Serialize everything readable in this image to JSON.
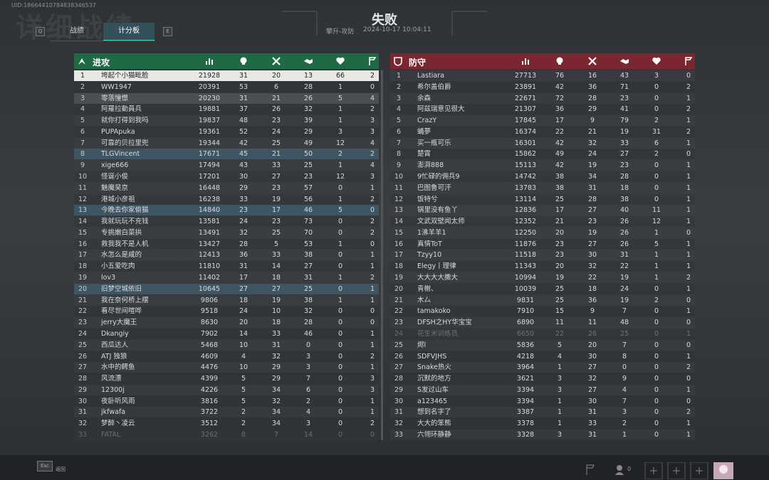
{
  "uid": "UID:18664410784838346537",
  "watermark": "详细战绩",
  "tabs": {
    "left_key": "Q",
    "items": [
      "战绩",
      "计分板"
    ],
    "right_key": "E"
  },
  "header": {
    "result": "失败",
    "mode": "攀升-攻防",
    "time": "2024-10-17 10:04:11"
  },
  "teams": [
    {
      "name": "进攻",
      "rows": [
        [
          1,
          "垮起个小猫毗脸",
          21928,
          31,
          20,
          13,
          66,
          2
        ],
        [
          2,
          "WW1947",
          20391,
          53,
          6,
          28,
          1,
          0
        ],
        [
          3,
          "零落憧憬",
          20230,
          31,
          21,
          26,
          5,
          4
        ],
        [
          4,
          "阿羅拉動員兵",
          19881,
          37,
          26,
          32,
          1,
          2
        ],
        [
          5,
          "就你打得到我吗",
          19837,
          48,
          23,
          39,
          1,
          3
        ],
        [
          6,
          "PUPApuka",
          19361,
          52,
          24,
          29,
          3,
          3
        ],
        [
          7,
          "可靠的贝拉里兜",
          19344,
          42,
          25,
          49,
          12,
          4
        ],
        [
          8,
          "TLGVincent",
          17671,
          45,
          21,
          50,
          2,
          2
        ],
        [
          9,
          "xige666",
          17494,
          43,
          33,
          25,
          1,
          4
        ],
        [
          10,
          "怪诞小俊",
          17201,
          30,
          27,
          23,
          12,
          3
        ],
        [
          11,
          "魅魔吴京",
          16448,
          29,
          23,
          57,
          0,
          1
        ],
        [
          12,
          "港城小彦祖",
          16238,
          33,
          19,
          56,
          1,
          2
        ],
        [
          13,
          "今晚去你家偷猫",
          14840,
          23,
          17,
          46,
          5,
          0
        ],
        [
          14,
          "我就玩玩不充钱",
          13581,
          24,
          23,
          73,
          0,
          2
        ],
        [
          15,
          "专挑嫩白菜拱",
          13491,
          32,
          25,
          70,
          0,
          2
        ],
        [
          16,
          "救我我不是人机",
          13427,
          28,
          5,
          53,
          1,
          0
        ],
        [
          17,
          "水怎么是咸的",
          12413,
          36,
          33,
          38,
          0,
          1
        ],
        [
          18,
          "小五爱吃肉",
          11810,
          31,
          14,
          27,
          0,
          1
        ],
        [
          19,
          "lov3",
          11402,
          17,
          18,
          31,
          1,
          2
        ],
        [
          20,
          "旧梦空城依旧",
          10645,
          27,
          27,
          25,
          0,
          1
        ],
        [
          21,
          "我在奈何桥上摆",
          9806,
          18,
          19,
          38,
          1,
          1
        ],
        [
          22,
          "看尽世间喧哗",
          9518,
          24,
          10,
          32,
          0,
          0
        ],
        [
          23,
          "jerry大魔王",
          8630,
          20,
          18,
          28,
          0,
          0
        ],
        [
          24,
          "Dkangiy",
          7902,
          14,
          33,
          46,
          0,
          1
        ],
        [
          25,
          "西瓜达人",
          5468,
          10,
          31,
          0,
          0,
          1
        ],
        [
          26,
          "ATJ 独狼",
          4609,
          4,
          32,
          3,
          0,
          2
        ],
        [
          27,
          "水中的鳄鱼",
          4476,
          10,
          29,
          3,
          0,
          1
        ],
        [
          28,
          "风流漂",
          4399,
          5,
          29,
          7,
          0,
          3
        ],
        [
          29,
          "12300j",
          4226,
          5,
          34,
          6,
          0,
          3
        ],
        [
          30,
          "夜卧听风雨",
          3816,
          5,
          32,
          2,
          0,
          1
        ],
        [
          31,
          "jkfwafa",
          3722,
          2,
          34,
          4,
          0,
          1
        ],
        [
          32,
          "梦醉丶凌云",
          3512,
          2,
          34,
          3,
          0,
          2
        ],
        [
          33,
          "FATAL",
          3262,
          8,
          7,
          14,
          0,
          0
        ]
      ]
    },
    {
      "name": "防守",
      "rows": [
        [
          1,
          "Lastiara",
          27713,
          76,
          16,
          43,
          3,
          0
        ],
        [
          2,
          "希尔盖伯爵",
          23891,
          42,
          36,
          71,
          0,
          2
        ],
        [
          3,
          "余森",
          22671,
          72,
          28,
          23,
          0,
          1
        ],
        [
          4,
          "阿兹瑞意见很大",
          21307,
          36,
          29,
          41,
          0,
          2
        ],
        [
          5,
          "CrazY",
          17845,
          17,
          9,
          79,
          2,
          1
        ],
        [
          6,
          "蛹夢",
          16374,
          22,
          21,
          19,
          31,
          2
        ],
        [
          7,
          "买一瓶可乐",
          16301,
          42,
          32,
          33,
          6,
          1
        ],
        [
          8,
          "楚霄",
          15862,
          49,
          24,
          27,
          2,
          0
        ],
        [
          9,
          "澎湃888",
          15113,
          42,
          19,
          23,
          0,
          1
        ],
        [
          10,
          "9忙碌的佣兵9",
          14742,
          38,
          34,
          28,
          0,
          1
        ],
        [
          11,
          "巴图鲁可汗",
          13783,
          38,
          31,
          18,
          0,
          1
        ],
        [
          12,
          "饭特兮",
          13114,
          25,
          28,
          38,
          0,
          1
        ],
        [
          13,
          "锅里没有鱼丫",
          12836,
          17,
          27,
          40,
          11,
          1
        ],
        [
          14,
          "文武双壁闻太师",
          12352,
          21,
          23,
          26,
          12,
          1
        ],
        [
          15,
          "1沸羊羊1",
          12250,
          20,
          19,
          26,
          1,
          0
        ],
        [
          16,
          "真情ToT",
          11876,
          23,
          27,
          26,
          5,
          1
        ],
        [
          17,
          "Tzyy10",
          11518,
          23,
          30,
          31,
          1,
          1
        ],
        [
          18,
          "Elegy丨理律",
          11343,
          20,
          32,
          22,
          1,
          1
        ],
        [
          19,
          "大大大大撒大",
          10994,
          19,
          22,
          19,
          1,
          2
        ],
        [
          20,
          "青榭、",
          10039,
          25,
          18,
          24,
          0,
          1
        ],
        [
          21,
          "木厶",
          9831,
          25,
          36,
          19,
          2,
          0
        ],
        [
          22,
          "tamakoko",
          7910,
          15,
          9,
          7,
          0,
          1
        ],
        [
          23,
          "DFSH之HY华宝宝",
          6890,
          11,
          11,
          48,
          0,
          0
        ],
        [
          24,
          "花生米训练员",
          6650,
          22,
          26,
          25,
          0,
          1
        ],
        [
          25,
          "烬l",
          5836,
          5,
          20,
          7,
          0,
          0
        ],
        [
          26,
          "SDFVJHS",
          4218,
          4,
          30,
          8,
          0,
          1
        ],
        [
          27,
          "Snake热火",
          3964,
          1,
          27,
          0,
          0,
          2
        ],
        [
          28,
          "沉默的地方",
          3621,
          3,
          32,
          9,
          0,
          0
        ],
        [
          29,
          "S发过山车",
          3394,
          3,
          27,
          4,
          0,
          1
        ],
        [
          30,
          "a123465",
          3394,
          1,
          30,
          7,
          0,
          0
        ],
        [
          31,
          "想到名字了",
          3387,
          1,
          31,
          3,
          0,
          2
        ],
        [
          32,
          "大大的笨熊",
          3378,
          1,
          33,
          2,
          0,
          1
        ],
        [
          33,
          "六翎环静静",
          3328,
          3,
          31,
          1,
          0,
          1
        ]
      ]
    }
  ],
  "footer": {
    "esc_key": "Esc",
    "esc_label": "返回",
    "squad_count": "0"
  }
}
